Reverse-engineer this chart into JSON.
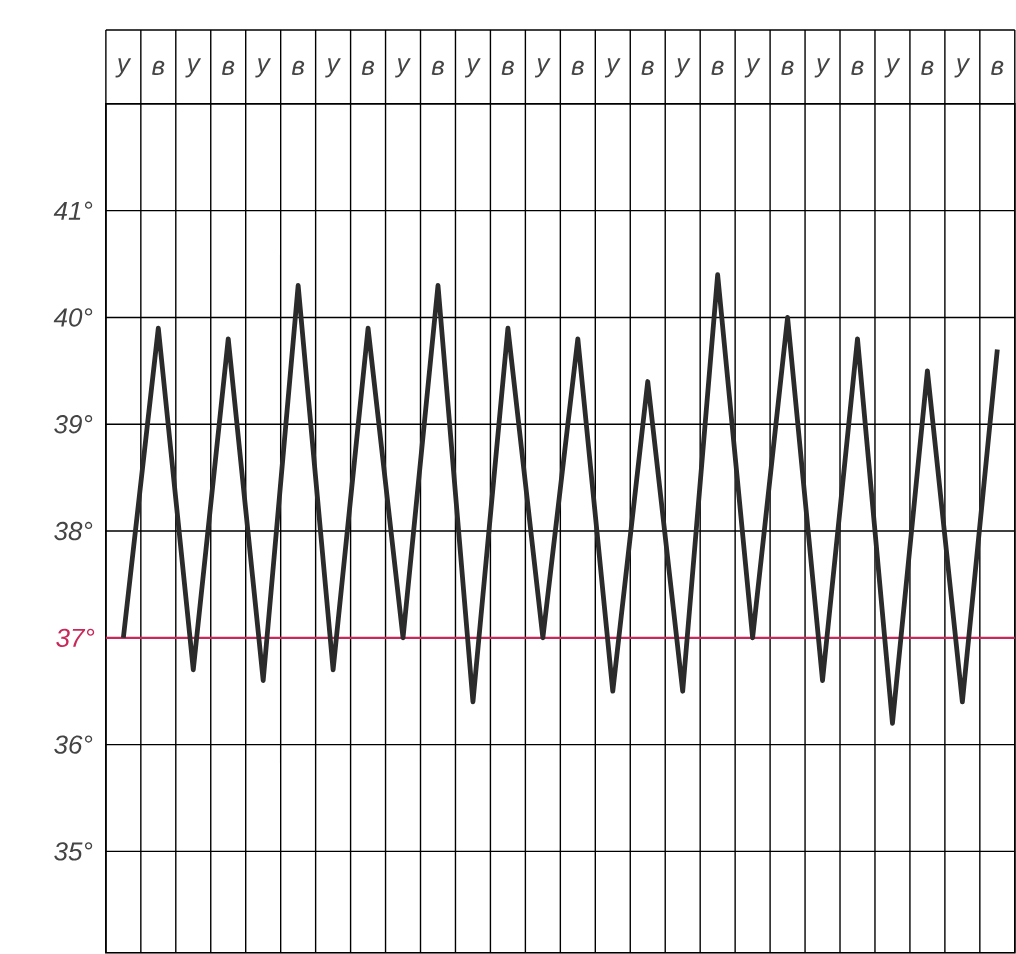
{
  "chart_data": {
    "type": "line",
    "categories": [
      "у",
      "в",
      "у",
      "в",
      "у",
      "в",
      "у",
      "в",
      "у",
      "в",
      "у",
      "в",
      "у",
      "в",
      "у",
      "в",
      "у",
      "в",
      "у",
      "в",
      "у",
      "в",
      "у",
      "в",
      "у",
      "в"
    ],
    "values": [
      37.0,
      39.9,
      36.7,
      39.8,
      36.6,
      40.3,
      36.7,
      39.9,
      37.0,
      40.3,
      36.4,
      39.9,
      37.0,
      39.8,
      36.5,
      39.4,
      36.5,
      40.4,
      37.0,
      40.0,
      36.6,
      39.8,
      36.2,
      39.5,
      36.4,
      39.7
    ],
    "color": "#2b2b2b",
    "line_style": "solid",
    "ylim": [
      34.05,
      42
    ],
    "yticks": [
      {
        "value": 35,
        "label": "35°"
      },
      {
        "value": 36,
        "label": "36°"
      },
      {
        "value": 37,
        "label": null
      },
      {
        "value": 38,
        "label": "38°"
      },
      {
        "value": 39,
        "label": "39°"
      },
      {
        "value": 40,
        "label": "40°"
      },
      {
        "value": 41,
        "label": "41°"
      }
    ],
    "grid": true,
    "ref_lines": [
      {
        "axis": "y",
        "value": 37,
        "label": "37°",
        "color": "#c8285a"
      }
    ]
  }
}
